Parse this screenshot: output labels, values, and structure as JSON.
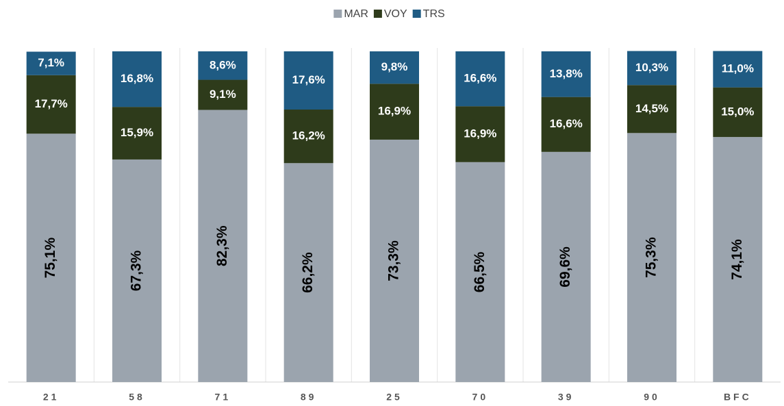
{
  "chart_data": {
    "type": "stacked_bar",
    "categories": [
      "21",
      "58",
      "71",
      "89",
      "25",
      "70",
      "39",
      "90",
      "BFC"
    ],
    "series": [
      {
        "name": "MAR",
        "color": "#9ba4ae",
        "values": [
          75.1,
          67.3,
          82.3,
          66.2,
          73.3,
          66.5,
          69.6,
          75.3,
          74.1
        ],
        "value_labels": [
          "75,1%",
          "67,3%",
          "82,3%",
          "66,2%",
          "73,3%",
          "66,5%",
          "69,6%",
          "75,3%",
          "74,1%"
        ]
      },
      {
        "name": "VOY",
        "color": "#2e3b1b",
        "values": [
          17.7,
          15.9,
          9.1,
          16.2,
          16.9,
          16.9,
          16.6,
          14.5,
          15.0
        ],
        "value_labels": [
          "17,7%",
          "15,9%",
          "9,1%",
          "16,2%",
          "16,9%",
          "16,9%",
          "16,6%",
          "14,5%",
          "15,0%"
        ]
      },
      {
        "name": "TRS",
        "color": "#1f5b83",
        "values": [
          7.1,
          16.8,
          8.6,
          17.6,
          9.8,
          16.6,
          13.8,
          10.3,
          11.0
        ],
        "value_labels": [
          "7,1%",
          "16,8%",
          "8,6%",
          "17,6%",
          "9,8%",
          "16,6%",
          "13,8%",
          "10,3%",
          "11,0%"
        ]
      }
    ],
    "ylim": [
      0,
      100
    ],
    "legend": "top"
  }
}
